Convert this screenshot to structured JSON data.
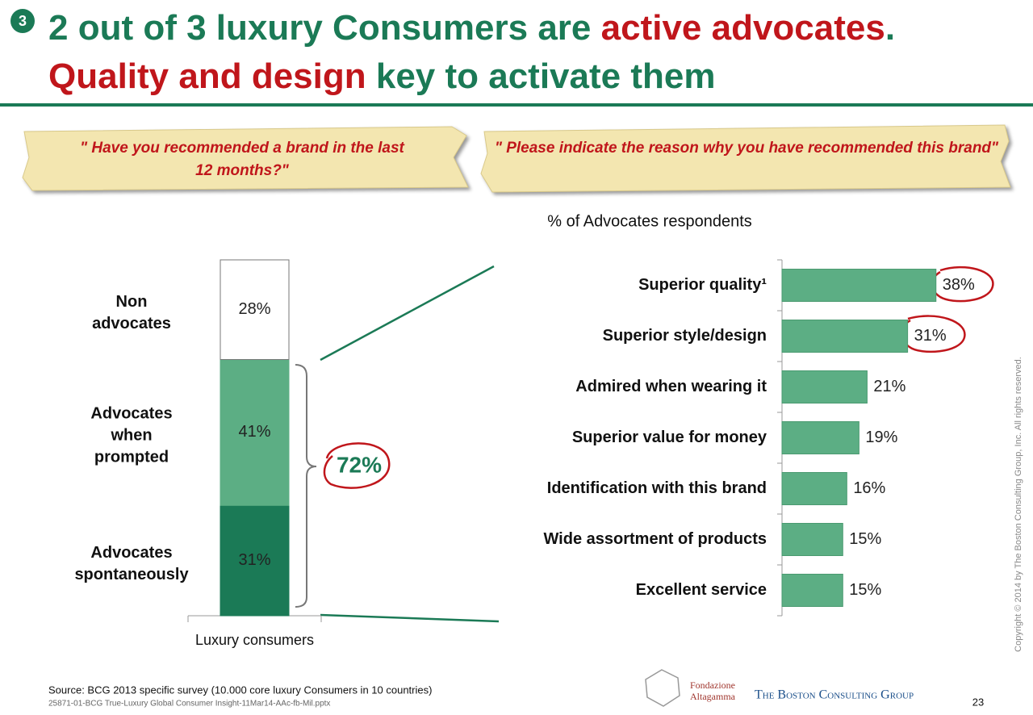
{
  "slide_number": "3",
  "title_line1": [
    "2 out of 3 luxury Consumers are ",
    "active advocates",
    "."
  ],
  "title_line2": [
    "Quality and design",
    " key to activate them"
  ],
  "question_left": "\" Have you recommended a brand in the last 12 months?\"",
  "question_right": "\" Please indicate the reason why you have recommended this brand\"",
  "chart_data": [
    {
      "type": "stacked_bar",
      "categories": [
        "Luxury consumers"
      ],
      "ylim": [
        0,
        100
      ],
      "series": [
        {
          "name": "Advocates spontaneously",
          "color": "#1b7a56",
          "values": [
            31
          ],
          "value_labels": [
            "31%"
          ]
        },
        {
          "name": "Advocates when prompted",
          "color": "#5cae84",
          "values": [
            41
          ],
          "value_labels": [
            "41%"
          ]
        },
        {
          "name": "Non advocates",
          "color": "#ffffff",
          "values": [
            28
          ],
          "value_labels": [
            "28%"
          ]
        }
      ],
      "annotation": "72%"
    },
    {
      "type": "hbar",
      "subtitle": "% of  Advocates respondents",
      "color": "#5cae84",
      "xlim": [
        0,
        50
      ],
      "categories": [
        "Superior quality¹",
        "Superior style/design",
        "Admired when wearing it",
        "Superior value for money",
        "Identification with this brand",
        "Wide assortment of products",
        "Excellent service"
      ],
      "values": [
        38,
        31,
        21,
        19,
        16,
        15,
        15
      ],
      "value_labels": [
        "38%",
        "31%",
        "21%",
        "19%",
        "16%",
        "15%",
        "15%"
      ]
    }
  ],
  "source": "Source: BCG 2013 specific survey (10.000 core luxury Consumers in 10 countries)",
  "file_name": "25871-01-BCG True-Luxury Global Consumer Insight-11Mar14-AAc-fb-Mil.pptx",
  "page_number": "23",
  "copyright": "Copyright © 2014 by The Boston Consulting Group, Inc. All rights reserved.",
  "logo_fondazione": [
    "Fondazione",
    "Altagamma"
  ],
  "logo_bcg": "The Boston Consulting Group"
}
